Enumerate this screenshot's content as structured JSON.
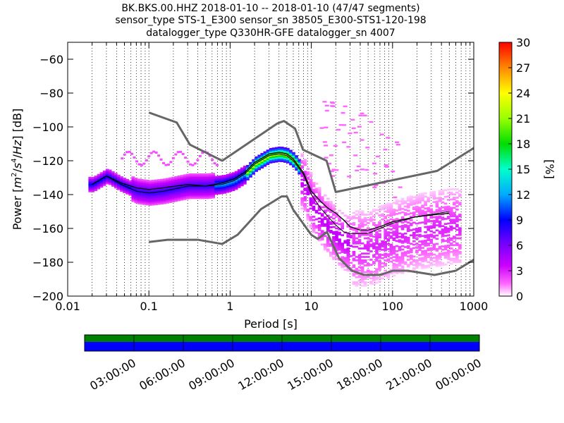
{
  "title_lines": [
    "BK.BKS.00.HHZ   2018-01-10 -- 2018-01-10  (47/47 segments)",
    "sensor_type STS-1_E300 sensor_sn 38505_E300-STS1-120-198",
    "datalogger_type Q330HR-GFE datalogger_sn 4007"
  ],
  "colorbar": {
    "label": "[%]",
    "ticks": [
      "0",
      "3",
      "6",
      "9",
      "12",
      "15",
      "18",
      "21",
      "24",
      "27",
      "30"
    ],
    "colormap": "pqlx"
  },
  "chart_data": {
    "type": "heatmap",
    "xlabel": "Period [s]",
    "ylabel": "Power [m²/s⁴/Hz] [dB]",
    "ylabel_parts": {
      "prefix": "Power [",
      "m": "m",
      "exp2": "2",
      "sep1": "/",
      "s": "s",
      "exp4": "4",
      "sep2": "/",
      "hz": "Hz",
      "suffix": "] [dB]"
    },
    "xscale": "log",
    "xlim": [
      0.01,
      1000
    ],
    "ylim": [
      -200,
      -50
    ],
    "xticks": [
      {
        "value": 0.01,
        "label": "0.01"
      },
      {
        "value": 0.1,
        "label": "0.1"
      },
      {
        "value": 1,
        "label": "1"
      },
      {
        "value": 10,
        "label": "10"
      },
      {
        "value": 100,
        "label": "100"
      },
      {
        "value": 1000,
        "label": "1000"
      }
    ],
    "yticks": [
      {
        "value": -60,
        "label": "−60"
      },
      {
        "value": -80,
        "label": "−80"
      },
      {
        "value": -100,
        "label": "−100"
      },
      {
        "value": -120,
        "label": "−120"
      },
      {
        "value": -140,
        "label": "−140"
      },
      {
        "value": -160,
        "label": "−160"
      },
      {
        "value": -180,
        "label": "−180"
      },
      {
        "value": -200,
        "label": "−200"
      }
    ],
    "grid": "dotted vertical",
    "noise_models": [
      {
        "name": "NHNM",
        "period": [
          0.1,
          0.22,
          0.32,
          0.8,
          3.8,
          4.6,
          6.3,
          7.9,
          15.4,
          20,
          354.8,
          1000
        ],
        "power": [
          -91.5,
          -97.4,
          -110.5,
          -120,
          -98,
          -96.5,
          -101,
          -113.5,
          -120,
          -138.5,
          -126,
          -112.5
        ]
      },
      {
        "name": "NLNM",
        "period": [
          0.1,
          0.17,
          0.4,
          0.8,
          1.24,
          2.4,
          4.3,
          5.0,
          6.0,
          10,
          12,
          15.6,
          21.9,
          31.6,
          45,
          70,
          101,
          154,
          328,
          600,
          1000
        ],
        "power": [
          -168,
          -166.7,
          -166.7,
          -169.2,
          -163.7,
          -148.6,
          -141.1,
          -141.1,
          -149,
          -163.8,
          -166.2,
          -162.1,
          -177.5,
          -185,
          -187.5,
          -187.5,
          -185,
          -185,
          -187.5,
          -185,
          -178.5
        ]
      }
    ],
    "mean_curve": {
      "period": [
        0.02,
        0.03,
        0.045,
        0.07,
        0.1,
        0.15,
        0.3,
        0.5,
        0.8,
        1.1,
        1.5,
        2,
        3,
        4,
        5,
        6,
        8,
        10,
        13,
        16,
        20,
        25,
        30,
        40,
        50,
        70,
        100,
        200,
        500
      ],
      "power": [
        -134,
        -129,
        -133,
        -136,
        -137,
        -136,
        -134,
        -135,
        -133,
        -131,
        -127,
        -121,
        -116,
        -115,
        -116,
        -119,
        -127,
        -138,
        -144,
        -148,
        -151,
        -155,
        -159,
        -161,
        -161,
        -159,
        -156,
        -153,
        -151
      ]
    },
    "mode_curve": {
      "period": [
        0.02,
        0.03,
        0.045,
        0.07,
        0.1,
        0.15,
        0.3,
        0.5,
        0.8,
        1.1,
        1.5,
        2,
        3,
        4,
        5,
        6,
        8,
        10,
        13,
        16,
        20,
        25,
        30,
        40,
        50,
        70,
        100,
        200,
        500
      ],
      "power": [
        -134,
        -129,
        -134,
        -138,
        -139,
        -138,
        -135,
        -135,
        -134,
        -132,
        -128,
        -122,
        -117,
        -116,
        -117,
        -120,
        -128,
        -140,
        -148,
        -153,
        -158,
        -162,
        -163,
        -163,
        -163,
        -160,
        -157,
        -153,
        -150
      ]
    },
    "density_bands": [
      {
        "period_range": [
          0.018,
          0.06
        ],
        "power": [
          -134,
          -127
        ],
        "percent": 9,
        "note": ""
      },
      {
        "period_range": [
          0.06,
          0.6
        ],
        "power": [
          -141,
          -126
        ],
        "percent": 8
      },
      {
        "period_range": [
          0.6,
          1.5
        ],
        "power": [
          -134,
          -120
        ],
        "percent": 12
      },
      {
        "period_range": [
          1.5,
          7
        ],
        "power": [
          -124,
          -111
        ],
        "percent": 20
      },
      {
        "period_range": [
          7,
          30
        ],
        "power": [
          -160,
          -130
        ],
        "percent": 3
      },
      {
        "period_range": [
          30,
          700
        ],
        "power": [
          -182,
          -130
        ],
        "percent": 2
      }
    ]
  },
  "timeline": {
    "ticks": [
      "03:00:00",
      "06:00:00",
      "09:00:00",
      "12:00:00",
      "15:00:00",
      "18:00:00",
      "21:00:00",
      "00:00:00"
    ],
    "top_color": "#008000",
    "bottom_color": "#0000ff"
  }
}
